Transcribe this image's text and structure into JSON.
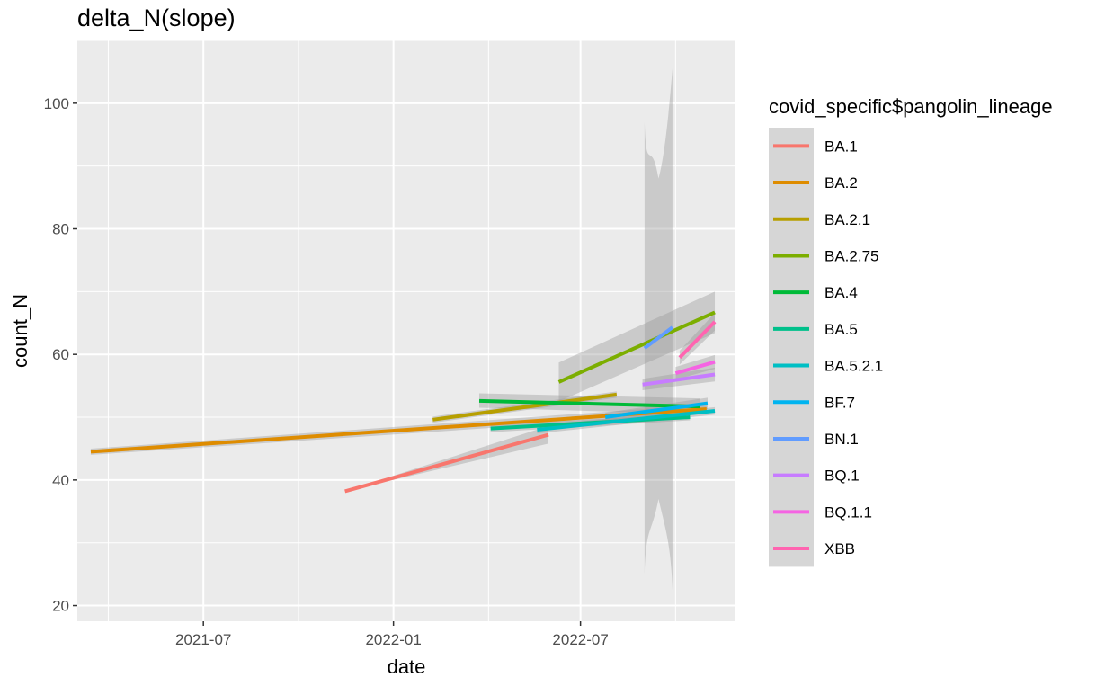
{
  "chart_data": {
    "type": "line",
    "title": "delta_N(slope)",
    "xlabel": "date",
    "ylabel": "count_N",
    "x_axis": {
      "type": "date",
      "min": "2021-03-01",
      "max": "2022-11-28",
      "ticks": [
        "2021-07",
        "2022-01",
        "2022-07"
      ],
      "tick_dates": [
        "2021-07-01",
        "2022-01-01",
        "2022-07-01"
      ]
    },
    "y_axis": {
      "min": 17.5,
      "max": 110,
      "ticks": [
        20,
        40,
        60,
        80,
        100
      ]
    },
    "grid": true,
    "legend": {
      "title": "covid_specific$pangolin_lineage",
      "position": "right"
    },
    "series": [
      {
        "name": "BA.1",
        "color": "#F8766D",
        "x": [
          "2021-11-15",
          "2022-05-31"
        ],
        "y": [
          38.2,
          47.2
        ],
        "band": [
          [
            38.2,
            38.2
          ],
          [
            45.8,
            48.6
          ]
        ]
      },
      {
        "name": "BA.2",
        "color": "#DE8C00",
        "x": [
          "2021-03-14",
          "2022-10-31"
        ],
        "y": [
          44.5,
          51.3
        ],
        "band": [
          [
            44.0,
            45.0
          ],
          [
            50.6,
            52.0
          ]
        ]
      },
      {
        "name": "BA.2.1",
        "color": "#B79F00",
        "x": [
          "2022-02-08",
          "2022-08-05"
        ],
        "y": [
          49.6,
          53.6
        ],
        "band": [
          [
            49.1,
            50.1
          ],
          [
            53.1,
            54.1
          ]
        ]
      },
      {
        "name": "BA.2.75",
        "color": "#7CAE00",
        "x": [
          "2022-06-10",
          "2022-11-08"
        ],
        "y": [
          55.6,
          66.7
        ],
        "band": [
          [
            52.5,
            58.7
          ],
          [
            63.4,
            70.0
          ]
        ]
      },
      {
        "name": "BA.4",
        "color": "#00BA38",
        "x": [
          "2022-03-25",
          "2022-10-25"
        ],
        "y": [
          52.6,
          51.7
        ],
        "band": [
          [
            51.5,
            53.8
          ],
          [
            50.5,
            53.0
          ]
        ]
      },
      {
        "name": "BA.5",
        "color": "#00C08B",
        "x": [
          "2022-04-05",
          "2022-10-15"
        ],
        "y": [
          48.2,
          50.0
        ],
        "band": [
          [
            47.6,
            48.8
          ],
          [
            49.5,
            50.5
          ]
        ]
      },
      {
        "name": "BA.5.2.1",
        "color": "#00BFC4",
        "x": [
          "2022-05-20",
          "2022-11-08"
        ],
        "y": [
          48.0,
          51.0
        ],
        "band": [
          [
            47.4,
            48.6
          ],
          [
            50.4,
            51.6
          ]
        ]
      },
      {
        "name": "BF.7",
        "color": "#00B4F0",
        "x": [
          "2022-07-25",
          "2022-11-01"
        ],
        "y": [
          50.0,
          52.2
        ],
        "band": [
          [
            49.3,
            50.7
          ],
          [
            51.3,
            53.1
          ]
        ]
      },
      {
        "name": "BN.1",
        "color": "#619CFF",
        "x": [
          "2022-09-01",
          "2022-09-28"
        ],
        "y": [
          61.0,
          64.3
        ],
        "band": [
          [
            25.0,
            97.0
          ],
          [
            22.5,
            105.5
          ]
        ]
      },
      {
        "name": "BQ.1",
        "color": "#C77CFF",
        "x": [
          "2022-08-30",
          "2022-11-08"
        ],
        "y": [
          55.2,
          56.8
        ],
        "band": [
          [
            54.3,
            56.1
          ],
          [
            55.7,
            57.9
          ]
        ]
      },
      {
        "name": "BQ.1.1",
        "color": "#F564E3",
        "x": [
          "2022-10-01",
          "2022-11-08"
        ],
        "y": [
          57.0,
          58.8
        ],
        "band": [
          [
            56.0,
            58.0
          ],
          [
            57.7,
            59.9
          ]
        ]
      },
      {
        "name": "XBB",
        "color": "#FF64B0",
        "x": [
          "2022-10-05",
          "2022-11-08"
        ],
        "y": [
          59.5,
          65.2
        ],
        "band": [
          [
            58.4,
            60.6
          ],
          [
            63.8,
            66.6
          ]
        ]
      }
    ]
  }
}
